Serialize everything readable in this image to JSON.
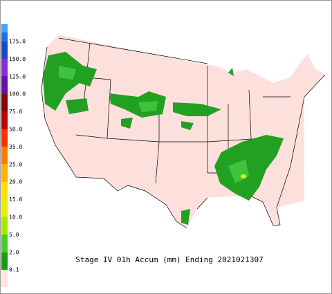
{
  "title": "Stage IV 01h Accum (mm) Ending 2021021307",
  "legend": {
    "labels": [
      "175.0",
      "150.0",
      "125.0",
      "100.0",
      "75.0",
      "50.0",
      "35.0",
      "25.0",
      "20.0",
      "15.0",
      "10.0",
      "5.0",
      "2.0",
      "0.1"
    ]
  }
}
